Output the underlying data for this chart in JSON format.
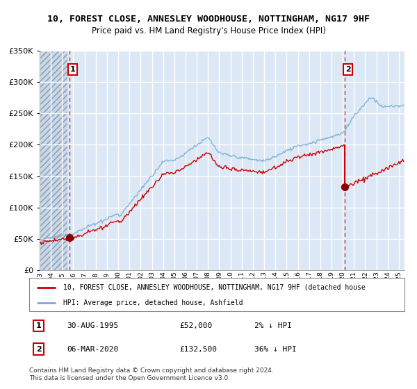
{
  "title": "10, FOREST CLOSE, ANNESLEY WOODHOUSE, NOTTINGHAM, NG17 9HF",
  "subtitle": "Price paid vs. HM Land Registry's House Price Index (HPI)",
  "legend_line1": "10, FOREST CLOSE, ANNESLEY WOODHOUSE, NOTTINGHAM, NG17 9HF (detached house",
  "legend_line2": "HPI: Average price, detached house, Ashfield",
  "annotation1_label": "1",
  "annotation1_date": "30-AUG-1995",
  "annotation1_price": "£52,000",
  "annotation1_hpi": "2% ↓ HPI",
  "annotation2_label": "2",
  "annotation2_date": "06-MAR-2020",
  "annotation2_price": "£132,500",
  "annotation2_hpi": "36% ↓ HPI",
  "footer": "Contains HM Land Registry data © Crown copyright and database right 2024.\nThis data is licensed under the Open Government Licence v3.0.",
  "point1_year": 1995.66,
  "point1_value": 52000,
  "point2_year": 2020.17,
  "point2_value": 132500,
  "ylim": [
    0,
    350000
  ],
  "xlim_start": 1993.0,
  "xlim_end": 2025.5,
  "hpi_color": "#7aadd4",
  "property_color": "#cc0000",
  "chart_bg": "#dce8f5",
  "hatch_bg": "#c8d8e8"
}
